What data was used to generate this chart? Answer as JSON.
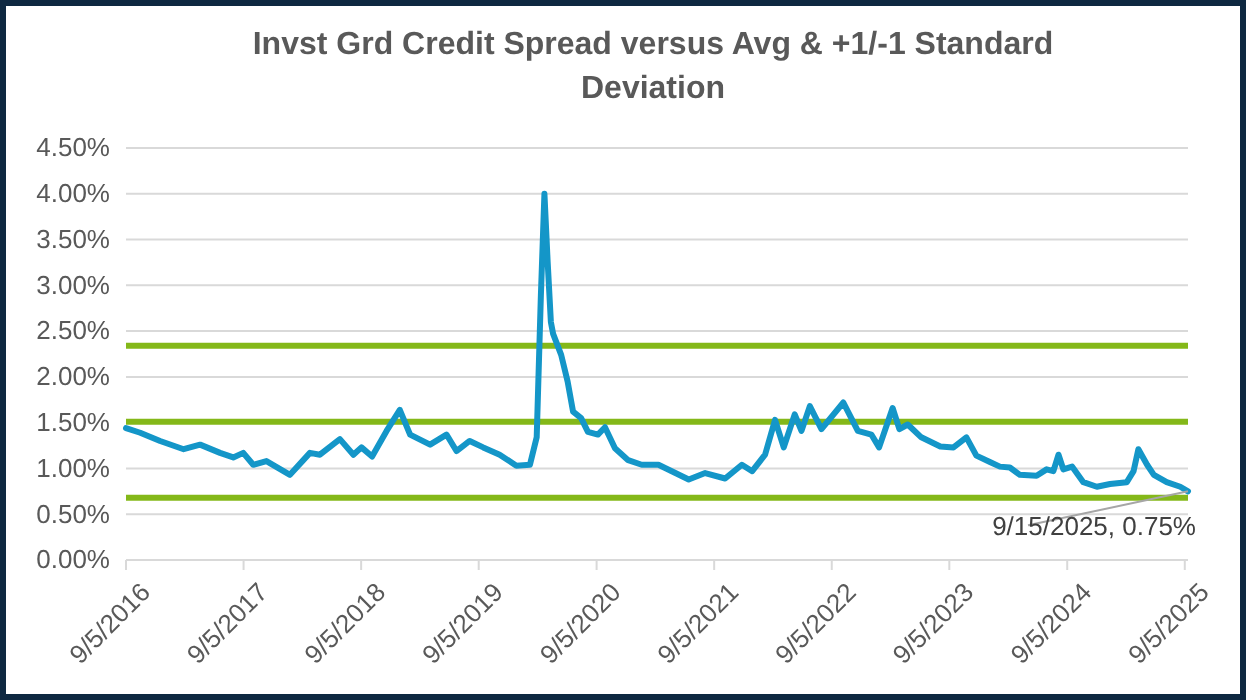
{
  "chart_data": {
    "type": "line",
    "title": "Invst Grd Credit Spread versus Avg & +1/-1 Standard Deviation",
    "x": [
      "2016-09-05",
      "2016-10-19",
      "2016-12-20",
      "2017-03-03",
      "2017-04-23",
      "2017-06-24",
      "2017-08-04",
      "2017-09-04",
      "2017-10-05",
      "2017-11-15",
      "2018-01-27",
      "2018-03-30",
      "2018-04-30",
      "2018-07-01",
      "2018-08-12",
      "2018-09-06",
      "2018-10-09",
      "2018-11-23",
      "2019-01-03",
      "2019-02-04",
      "2019-04-07",
      "2019-05-28",
      "2019-06-28",
      "2019-08-08",
      "2019-09-19",
      "2019-11-09",
      "2019-12-31",
      "2020-02-11",
      "2020-03-03",
      "2020-03-16",
      "2020-03-27",
      "2020-04-06",
      "2020-04-16",
      "2020-04-23",
      "2020-05-18",
      "2020-06-07",
      "2020-06-24",
      "2020-07-19",
      "2020-08-09",
      "2020-09-09",
      "2020-10-01",
      "2020-11-01",
      "2020-12-12",
      "2021-01-23",
      "2021-03-16",
      "2021-06-18",
      "2021-08-08",
      "2021-10-09",
      "2021-11-30",
      "2022-01-01",
      "2022-02-10",
      "2022-03-13",
      "2022-04-09",
      "2022-05-13",
      "2022-06-03",
      "2022-06-29",
      "2022-08-04",
      "2022-10-11",
      "2022-11-25",
      "2023-01-06",
      "2023-01-30",
      "2023-03-13",
      "2023-04-03",
      "2023-04-29",
      "2023-06-10",
      "2023-08-08",
      "2023-09-18",
      "2023-10-28",
      "2023-11-28",
      "2024-01-09",
      "2024-02-09",
      "2024-03-11",
      "2024-04-11",
      "2024-06-02",
      "2024-07-03",
      "2024-07-24",
      "2024-08-09",
      "2024-08-24",
      "2024-09-20",
      "2024-10-25",
      "2024-12-06",
      "2025-01-16",
      "2025-03-09",
      "2025-03-30",
      "2025-04-14",
      "2025-05-11",
      "2025-06-01",
      "2025-07-11",
      "2025-08-22",
      "2025-09-15"
    ],
    "series": [
      {
        "color": "#1496c8",
        "values": [
          1.44,
          1.39,
          1.3,
          1.21,
          1.26,
          1.17,
          1.12,
          1.17,
          1.04,
          1.08,
          0.93,
          1.17,
          1.15,
          1.32,
          1.15,
          1.23,
          1.13,
          1.41,
          1.64,
          1.37,
          1.26,
          1.37,
          1.19,
          1.3,
          1.23,
          1.15,
          1.03,
          1.04,
          1.34,
          2.89,
          4.0,
          3.26,
          2.6,
          2.47,
          2.24,
          1.95,
          1.62,
          1.55,
          1.4,
          1.37,
          1.45,
          1.22,
          1.09,
          1.04,
          1.04,
          0.88,
          0.95,
          0.89,
          1.04,
          0.97,
          1.15,
          1.53,
          1.23,
          1.59,
          1.41,
          1.68,
          1.43,
          1.72,
          1.41,
          1.37,
          1.23,
          1.66,
          1.43,
          1.48,
          1.34,
          1.24,
          1.23,
          1.34,
          1.14,
          1.07,
          1.02,
          1.01,
          0.93,
          0.92,
          0.99,
          0.97,
          1.15,
          0.99,
          1.02,
          0.85,
          0.8,
          0.83,
          0.85,
          0.97,
          1.21,
          1.04,
          0.93,
          0.85,
          0.8,
          0.75
        ]
      }
    ],
    "xlim": [
      "2016-09-05",
      "2025-09-15"
    ],
    "xticks": [
      {
        "value": "2016-09-05",
        "label": "9/5/2016"
      },
      {
        "value": "2017-09-05",
        "label": "9/5/2017"
      },
      {
        "value": "2018-09-05",
        "label": "9/5/2018"
      },
      {
        "value": "2019-09-05",
        "label": "9/5/2019"
      },
      {
        "value": "2020-09-05",
        "label": "9/5/2020"
      },
      {
        "value": "2021-09-05",
        "label": "9/5/2021"
      },
      {
        "value": "2022-09-05",
        "label": "9/5/2022"
      },
      {
        "value": "2023-09-05",
        "label": "9/5/2023"
      },
      {
        "value": "2024-09-05",
        "label": "9/5/2024"
      },
      {
        "value": "2025-09-05",
        "label": "9/5/2025"
      }
    ],
    "ylim": [
      0,
      4.5
    ],
    "yticks": [
      {
        "value": 0,
        "label": "0.00%"
      },
      {
        "value": 0.5,
        "label": "0.50%"
      },
      {
        "value": 1,
        "label": "1.00%"
      },
      {
        "value": 1.5,
        "label": "1.50%"
      },
      {
        "value": 2,
        "label": "2.00%"
      },
      {
        "value": 2.5,
        "label": "2.50%"
      },
      {
        "value": 3,
        "label": "3.00%"
      },
      {
        "value": 3.5,
        "label": "3.50%"
      },
      {
        "value": 4,
        "label": "4.00%"
      },
      {
        "value": 4.5,
        "label": "4.50%"
      }
    ],
    "grid": "y",
    "line_style": "solid",
    "marker": "none",
    "ref_lines": [
      {
        "axis": "y",
        "value": 2.34,
        "color": "#84b819"
      },
      {
        "axis": "y",
        "value": 1.51,
        "color": "#84b819"
      },
      {
        "axis": "y",
        "value": 0.68,
        "color": "#84b819"
      }
    ],
    "annotations": [
      {
        "text": "9/15/2025, 0.75%",
        "x": "2025-09-15",
        "y": 0.75
      }
    ]
  }
}
